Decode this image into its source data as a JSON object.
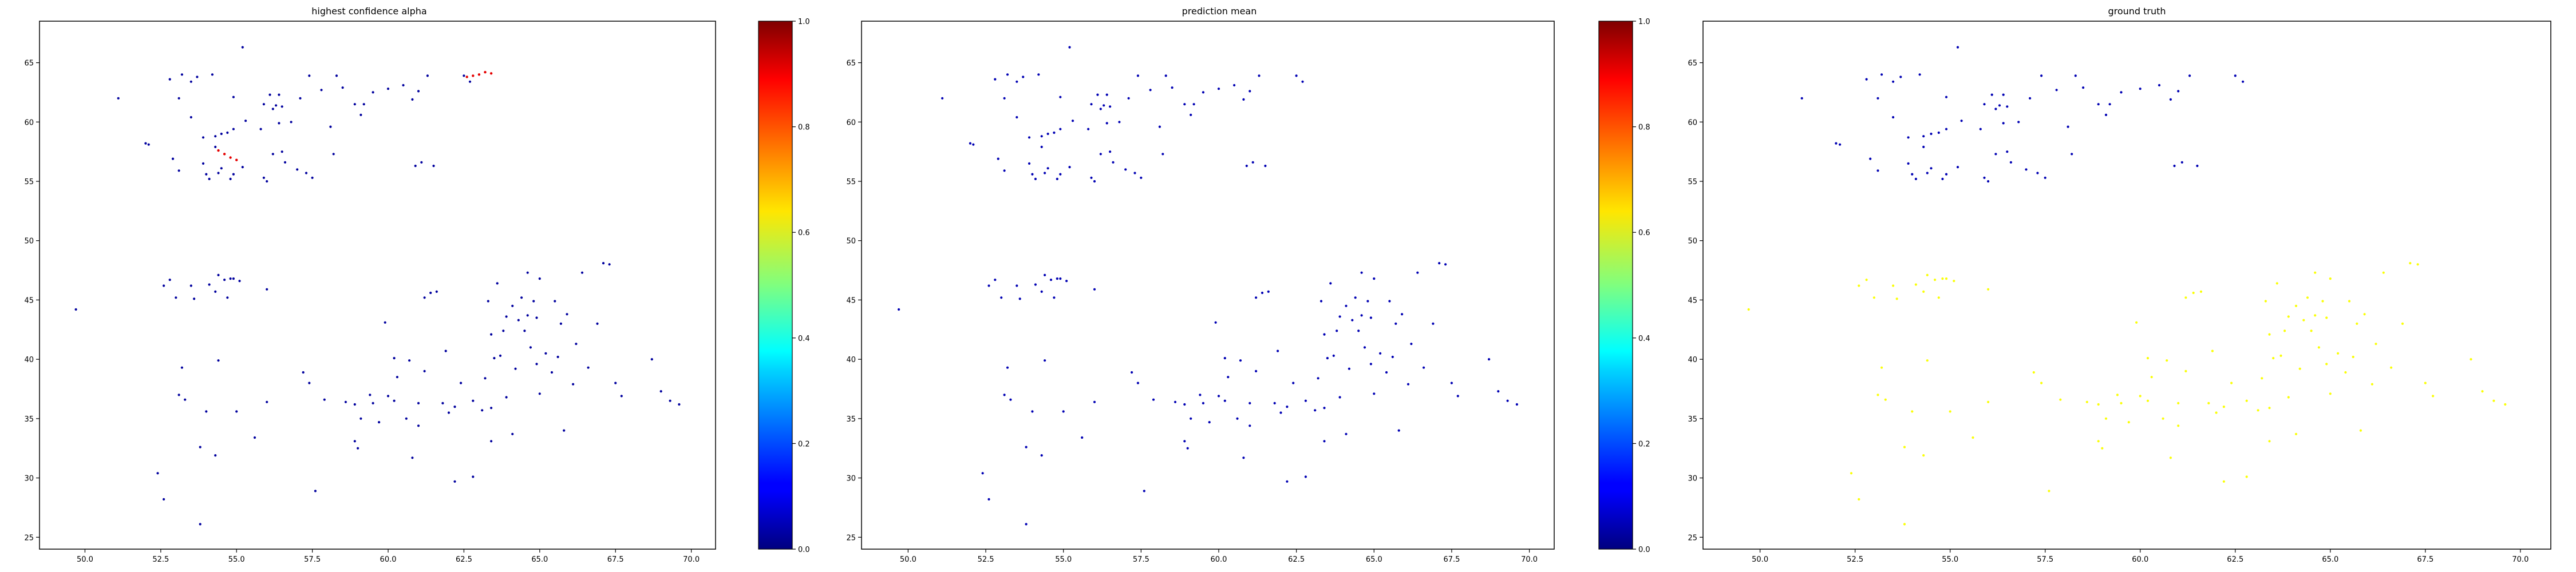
{
  "chart_data": [
    {
      "type": "scatter",
      "title": "highest confidence alpha",
      "xlabel": "",
      "ylabel": "",
      "xlim": [
        48.5,
        70.8
      ],
      "ylim": [
        24,
        68.5
      ],
      "xticks": [
        "50.0",
        "52.5",
        "55.0",
        "57.5",
        "60.0",
        "62.5",
        "65.0",
        "67.5",
        "70.0"
      ],
      "yticks": [
        "25",
        "30",
        "35",
        "40",
        "45",
        "50",
        "55",
        "60",
        "65"
      ],
      "color_scale": "jet",
      "colorbar": {
        "ticks": [
          "0.0",
          "0.2",
          "0.4",
          "0.6",
          "0.8",
          "1.0"
        ]
      },
      "grid": false,
      "point_value": 0.03,
      "highlight_value": 0.9,
      "highlights": [
        [
          54.4,
          57.6
        ],
        [
          54.6,
          57.3
        ],
        [
          54.8,
          57.0
        ],
        [
          55.0,
          56.8
        ],
        [
          62.6,
          63.8
        ],
        [
          62.8,
          63.9
        ],
        [
          63.0,
          64.0
        ],
        [
          63.2,
          64.2
        ],
        [
          63.4,
          64.1
        ]
      ]
    },
    {
      "type": "scatter",
      "title": "prediction mean",
      "xlabel": "",
      "ylabel": "",
      "xlim": [
        48.5,
        70.8
      ],
      "ylim": [
        24,
        68.5
      ],
      "xticks": [
        "50.0",
        "52.5",
        "55.0",
        "57.5",
        "60.0",
        "62.5",
        "65.0",
        "67.5",
        "70.0"
      ],
      "yticks": [
        "25",
        "30",
        "35",
        "40",
        "45",
        "50",
        "55",
        "60",
        "65"
      ],
      "color_scale": "jet",
      "colorbar": {
        "ticks": [
          "0.0",
          "0.2",
          "0.4",
          "0.6",
          "0.8",
          "1.0"
        ]
      },
      "grid": false,
      "point_value": 0.05
    },
    {
      "type": "scatter",
      "title": "ground truth",
      "xlabel": "",
      "ylabel": "",
      "xlim": [
        48.5,
        70.8
      ],
      "ylim": [
        24,
        68.5
      ],
      "xticks": [
        "50.0",
        "52.5",
        "55.0",
        "57.5",
        "60.0",
        "62.5",
        "65.0",
        "67.5",
        "70.0"
      ],
      "yticks": [
        "25",
        "30",
        "35",
        "40",
        "45",
        "50",
        "55",
        "60",
        "65"
      ],
      "color_scale": "jet",
      "grid": false,
      "point_value_north": 0.05,
      "point_value_south": 0.62,
      "value_split_y": 50
    }
  ],
  "points": [
    [
      49.7,
      44.2
    ],
    [
      51.1,
      62.0
    ],
    [
      52.0,
      58.2
    ],
    [
      52.4,
      30.4
    ],
    [
      52.6,
      28.2
    ],
    [
      52.6,
      46.2
    ],
    [
      52.8,
      63.6
    ],
    [
      52.8,
      46.7
    ],
    [
      52.9,
      56.9
    ],
    [
      53.0,
      45.2
    ],
    [
      53.1,
      37.0
    ],
    [
      53.1,
      55.9
    ],
    [
      53.1,
      62.0
    ],
    [
      53.2,
      39.3
    ],
    [
      53.2,
      64.0
    ],
    [
      53.3,
      36.6
    ],
    [
      53.5,
      46.2
    ],
    [
      53.5,
      63.4
    ],
    [
      53.5,
      60.4
    ],
    [
      53.6,
      45.1
    ],
    [
      53.7,
      63.8
    ],
    [
      53.8,
      32.6
    ],
    [
      53.8,
      26.1
    ],
    [
      53.9,
      58.7
    ],
    [
      53.9,
      56.5
    ],
    [
      54.0,
      35.6
    ],
    [
      54.0,
      55.6
    ],
    [
      54.1,
      55.2
    ],
    [
      54.1,
      46.3
    ],
    [
      54.2,
      64.0
    ],
    [
      54.3,
      31.9
    ],
    [
      54.3,
      58.8
    ],
    [
      54.3,
      57.9
    ],
    [
      54.3,
      45.7
    ],
    [
      54.4,
      47.1
    ],
    [
      54.4,
      39.9
    ],
    [
      54.4,
      55.7
    ],
    [
      54.5,
      59.0
    ],
    [
      54.5,
      56.1
    ],
    [
      54.6,
      46.7
    ],
    [
      54.7,
      59.1
    ],
    [
      54.7,
      45.2
    ],
    [
      54.8,
      55.2
    ],
    [
      54.8,
      46.8
    ],
    [
      54.9,
      59.4
    ],
    [
      54.9,
      62.1
    ],
    [
      54.9,
      46.8
    ],
    [
      54.9,
      55.6
    ],
    [
      55.0,
      35.6
    ],
    [
      55.1,
      46.6
    ],
    [
      55.2,
      56.2
    ],
    [
      55.2,
      66.3
    ],
    [
      55.3,
      60.1
    ],
    [
      55.6,
      33.4
    ],
    [
      55.8,
      59.4
    ],
    [
      55.9,
      55.3
    ],
    [
      55.9,
      61.5
    ],
    [
      56.0,
      55.0
    ],
    [
      56.0,
      36.4
    ],
    [
      56.0,
      45.9
    ],
    [
      56.1,
      62.3
    ],
    [
      56.2,
      61.1
    ],
    [
      56.2,
      57.3
    ],
    [
      56.3,
      61.4
    ],
    [
      56.4,
      62.3
    ],
    [
      56.4,
      59.9
    ],
    [
      56.5,
      61.3
    ],
    [
      56.5,
      57.5
    ],
    [
      56.6,
      56.6
    ],
    [
      56.8,
      60.0
    ],
    [
      57.0,
      56.0
    ],
    [
      57.1,
      62.0
    ],
    [
      57.2,
      38.9
    ],
    [
      57.3,
      55.7
    ],
    [
      57.4,
      63.9
    ],
    [
      57.4,
      38.0
    ],
    [
      57.5,
      55.3
    ],
    [
      57.6,
      28.9
    ],
    [
      57.8,
      62.7
    ],
    [
      57.9,
      36.6
    ],
    [
      58.1,
      59.6
    ],
    [
      58.2,
      57.3
    ],
    [
      58.3,
      63.9
    ],
    [
      58.5,
      62.9
    ],
    [
      58.6,
      36.4
    ],
    [
      58.9,
      33.1
    ],
    [
      58.9,
      36.2
    ],
    [
      58.9,
      61.5
    ],
    [
      59.0,
      32.5
    ],
    [
      59.1,
      35.0
    ],
    [
      59.1,
      60.6
    ],
    [
      59.2,
      61.5
    ],
    [
      59.4,
      37.0
    ],
    [
      59.5,
      36.3
    ],
    [
      59.5,
      62.5
    ],
    [
      59.7,
      34.7
    ],
    [
      59.9,
      43.1
    ],
    [
      60.0,
      36.9
    ],
    [
      60.0,
      62.8
    ],
    [
      60.2,
      36.5
    ],
    [
      60.2,
      40.1
    ],
    [
      60.3,
      38.5
    ],
    [
      60.5,
      63.1
    ],
    [
      60.6,
      35.0
    ],
    [
      60.7,
      39.9
    ],
    [
      60.8,
      31.7
    ],
    [
      60.8,
      61.9
    ],
    [
      60.9,
      56.3
    ],
    [
      61.0,
      36.3
    ],
    [
      61.0,
      34.4
    ],
    [
      61.0,
      62.6
    ],
    [
      61.1,
      56.6
    ],
    [
      61.2,
      39.0
    ],
    [
      61.2,
      45.2
    ],
    [
      61.3,
      63.9
    ],
    [
      61.4,
      45.6
    ],
    [
      61.5,
      56.3
    ],
    [
      61.6,
      45.7
    ],
    [
      61.8,
      36.3
    ],
    [
      61.9,
      40.7
    ],
    [
      62.0,
      35.5
    ],
    [
      62.2,
      36.0
    ],
    [
      62.2,
      29.7
    ],
    [
      62.4,
      38.0
    ],
    [
      62.7,
      63.4
    ],
    [
      62.8,
      36.5
    ],
    [
      62.8,
      30.1
    ],
    [
      63.1,
      35.7
    ],
    [
      63.2,
      38.4
    ],
    [
      63.3,
      44.9
    ],
    [
      63.4,
      35.9
    ],
    [
      63.4,
      42.1
    ],
    [
      63.4,
      33.1
    ],
    [
      63.5,
      40.1
    ],
    [
      63.6,
      46.4
    ],
    [
      63.7,
      40.3
    ],
    [
      63.8,
      42.4
    ],
    [
      63.9,
      43.6
    ],
    [
      63.9,
      36.8
    ],
    [
      64.1,
      44.5
    ],
    [
      64.1,
      33.7
    ],
    [
      64.2,
      39.2
    ],
    [
      64.3,
      43.3
    ],
    [
      64.4,
      45.2
    ],
    [
      64.5,
      42.4
    ],
    [
      64.6,
      47.3
    ],
    [
      64.6,
      43.7
    ],
    [
      64.7,
      41.0
    ],
    [
      64.8,
      44.9
    ],
    [
      64.9,
      39.6
    ],
    [
      64.9,
      43.5
    ],
    [
      65.0,
      37.1
    ],
    [
      65.0,
      46.8
    ],
    [
      65.2,
      40.5
    ],
    [
      65.4,
      38.9
    ],
    [
      65.5,
      44.9
    ],
    [
      65.6,
      40.2
    ],
    [
      65.7,
      43.0
    ],
    [
      65.8,
      34.0
    ],
    [
      65.9,
      43.8
    ],
    [
      66.1,
      37.9
    ],
    [
      66.2,
      41.3
    ],
    [
      66.4,
      47.3
    ],
    [
      66.6,
      39.3
    ],
    [
      66.9,
      43.0
    ],
    [
      67.1,
      48.1
    ],
    [
      67.3,
      48.0
    ],
    [
      67.5,
      38.0
    ],
    [
      67.7,
      36.9
    ],
    [
      68.7,
      40.0
    ],
    [
      69.0,
      37.3
    ],
    [
      69.3,
      36.5
    ],
    [
      69.6,
      36.2
    ],
    [
      52.1,
      58.1
    ],
    [
      62.5,
      63.9
    ]
  ]
}
